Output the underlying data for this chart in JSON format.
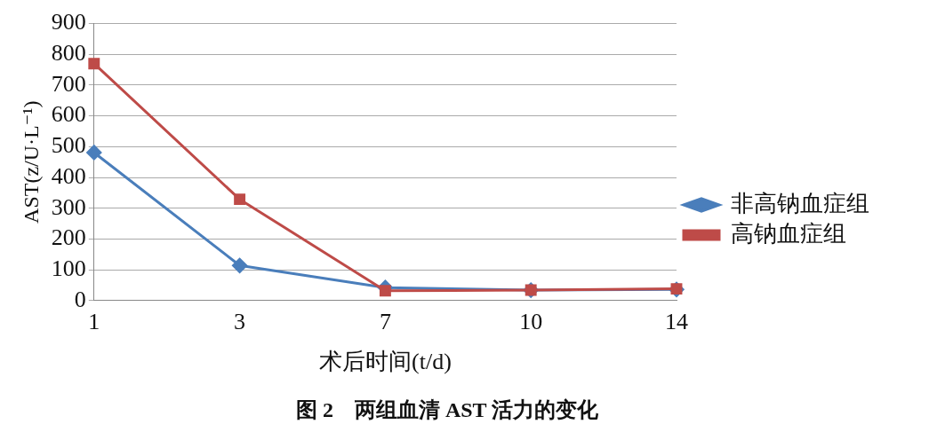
{
  "chart_data": {
    "type": "line",
    "title": "图 2　两组血清 AST 活力的变化",
    "xlabel": "术后时间(t/d)",
    "ylabel": "AST(z/U·L⁻¹)",
    "categories": [
      "1",
      "3",
      "7",
      "10",
      "14"
    ],
    "ylim": [
      0,
      900
    ],
    "yticks": [
      0,
      100,
      200,
      300,
      400,
      500,
      600,
      700,
      800,
      900
    ],
    "grid": "y",
    "legend": "right",
    "line_style": "solid",
    "series": [
      {
        "name": "非高钠血症组",
        "color": "#4a7ebb",
        "marker": "diamond",
        "values": [
          481,
          114,
          42,
          34,
          36
        ]
      },
      {
        "name": "高钠血症组",
        "color": "#be4b48",
        "marker": "square",
        "values": [
          770,
          329,
          32,
          34,
          38
        ]
      }
    ]
  }
}
